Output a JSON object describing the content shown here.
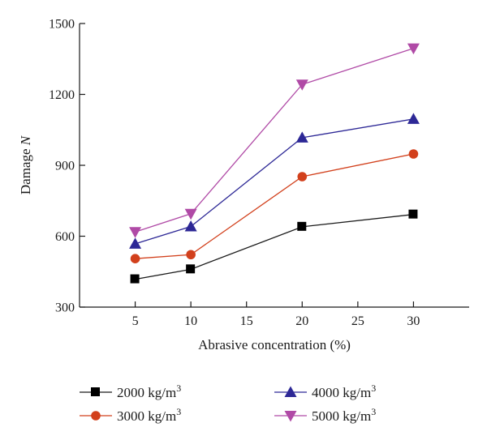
{
  "chart_data": {
    "type": "line",
    "title": "",
    "xlabel": "Abrasive concentration (%)",
    "ylabel": {
      "main": "Damage ",
      "symbol": "N"
    },
    "x": [
      5,
      10,
      20,
      30
    ],
    "xlim": [
      0,
      35
    ],
    "ylim": [
      300,
      1500
    ],
    "xticks": [
      5,
      10,
      15,
      20,
      25,
      30
    ],
    "yticks": [
      300,
      600,
      900,
      1200,
      1500
    ],
    "grid": false,
    "legend_position": "bottom",
    "series": [
      {
        "name": "2000 kg/m",
        "superscript": "3",
        "values": [
          418,
          460,
          640,
          692
        ],
        "color": "#000000",
        "line_color": "#1a1a1a",
        "marker": "square"
      },
      {
        "name": "3000 kg/m",
        "superscript": "3",
        "values": [
          505,
          522,
          852,
          948
        ],
        "color": "#d2401c",
        "line_color": "#d2401c",
        "marker": "circle"
      },
      {
        "name": "4000 kg/m",
        "superscript": "3",
        "values": [
          568,
          641,
          1017,
          1096
        ],
        "color": "#2d2896",
        "line_color": "#2d2896",
        "marker": "triangle-up"
      },
      {
        "name": "5000 kg/m",
        "superscript": "3",
        "values": [
          618,
          695,
          1242,
          1395
        ],
        "color": "#b04aa6",
        "line_color": "#b04aa6",
        "marker": "triangle-down"
      }
    ]
  }
}
